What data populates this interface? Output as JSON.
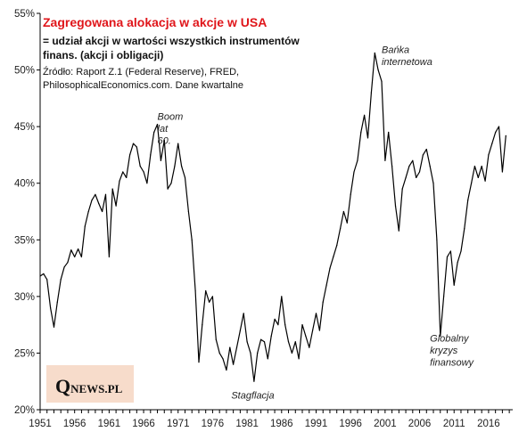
{
  "chart_data": {
    "type": "line",
    "title": "Zagregowana  alokacja  w akcje w USA",
    "subtitle_lines": [
      "= udział akcji w wartości wszystkich instrumentów",
      "finans. (akcji i obligacji)"
    ],
    "source_lines": [
      "Źródło: Raport Z.1 (Federal Reserve), FRED,",
      "PhilosophicalEconomics.com. Dane kwartalne"
    ],
    "xlabel": "",
    "ylabel": "",
    "xlim": [
      1951,
      2019.5
    ],
    "ylim": [
      20,
      55
    ],
    "x_ticks": [
      1951,
      1956,
      1961,
      1966,
      1971,
      1976,
      1981,
      1986,
      1991,
      1996,
      2001,
      2006,
      2011,
      2016
    ],
    "y_ticks": [
      20,
      25,
      30,
      35,
      40,
      45,
      50,
      55
    ],
    "y_tick_labels": [
      "20%",
      "25%",
      "30%",
      "35%",
      "40%",
      "45%",
      "50%",
      "55%"
    ],
    "grid": false,
    "line_color": "#000000",
    "annotations": [
      {
        "lines": [
          "Boom",
          "lat",
          "60."
        ],
        "x": 1968.0,
        "y": 45.6
      },
      {
        "lines": [
          "Bańka",
          "internetowa"
        ],
        "x": 2000.5,
        "y": 51.5
      },
      {
        "lines": [
          "Stagflacja"
        ],
        "x": 1978.7,
        "y": 21.0
      },
      {
        "lines": [
          "Globalny",
          "kryzys",
          "finansowy"
        ],
        "x": 2007.5,
        "y": 26.0
      }
    ],
    "series": [
      {
        "x": [
          1951.0,
          1951.5,
          1952.0,
          1952.5,
          1953.0,
          1953.5,
          1954.0,
          1954.5,
          1955.0,
          1955.5,
          1956.0,
          1956.5,
          1957.0,
          1957.5,
          1958.0,
          1958.5,
          1959.0,
          1959.5,
          1960.0,
          1960.5,
          1961.0,
          1961.5,
          1962.0,
          1962.5,
          1963.0,
          1963.5,
          1964.0,
          1964.5,
          1965.0,
          1965.5,
          1966.0,
          1966.5,
          1967.0,
          1967.5,
          1968.0,
          1968.5,
          1969.0,
          1969.5,
          1970.0,
          1970.5,
          1971.0,
          1971.5,
          1972.0,
          1972.5,
          1973.0,
          1973.5,
          1974.0,
          1974.5,
          1975.0,
          1975.5,
          1976.0,
          1976.5,
          1977.0,
          1977.5,
          1978.0,
          1978.5,
          1979.0,
          1979.5,
          1980.0,
          1980.5,
          1981.0,
          1981.5,
          1982.0,
          1982.5,
          1983.0,
          1983.5,
          1984.0,
          1984.5,
          1985.0,
          1985.5,
          1986.0,
          1986.5,
          1987.0,
          1987.5,
          1988.0,
          1988.5,
          1989.0,
          1989.5,
          1990.0,
          1990.5,
          1991.0,
          1991.5,
          1992.0,
          1992.5,
          1993.0,
          1993.5,
          1994.0,
          1994.5,
          1995.0,
          1995.5,
          1996.0,
          1996.5,
          1997.0,
          1997.5,
          1998.0,
          1998.5,
          1999.0,
          1999.5,
          2000.0,
          2000.5,
          2001.0,
          2001.5,
          2002.0,
          2002.5,
          2003.0,
          2003.5,
          2004.0,
          2004.5,
          2005.0,
          2005.5,
          2006.0,
          2006.5,
          2007.0,
          2007.5,
          2008.0,
          2008.5,
          2009.0,
          2009.5,
          2010.0,
          2010.5,
          2011.0,
          2011.5,
          2012.0,
          2012.5,
          2013.0,
          2013.5,
          2014.0,
          2014.5,
          2015.0,
          2015.5,
          2016.0,
          2016.5,
          2017.0,
          2017.5,
          2018.0,
          2018.5
        ],
        "values": [
          31.8,
          32.0,
          31.5,
          29.0,
          27.3,
          29.5,
          31.5,
          32.6,
          33.0,
          34.1,
          33.5,
          34.2,
          33.5,
          36.2,
          37.5,
          38.5,
          39.0,
          38.2,
          37.5,
          39.0,
          33.5,
          39.5,
          38.0,
          40.2,
          41.0,
          40.5,
          42.5,
          43.5,
          43.2,
          41.5,
          41.0,
          40.0,
          42.5,
          44.5,
          45.2,
          42.0,
          43.8,
          39.5,
          40.0,
          41.5,
          43.5,
          41.5,
          40.5,
          37.5,
          35.0,
          30.5,
          24.2,
          27.5,
          30.5,
          29.5,
          30.0,
          26.2,
          25.0,
          24.5,
          23.5,
          25.5,
          24.0,
          25.5,
          27.0,
          28.5,
          26.0,
          25.0,
          22.5,
          25.0,
          26.2,
          26.0,
          24.5,
          26.5,
          28.0,
          27.5,
          30.0,
          27.5,
          26.0,
          25.0,
          26.0,
          24.5,
          27.5,
          26.5,
          25.5,
          27.0,
          28.5,
          27.0,
          29.5,
          31.0,
          32.5,
          33.5,
          34.5,
          36.0,
          37.5,
          36.5,
          39.0,
          41.0,
          42.0,
          44.5,
          46.0,
          44.0,
          48.0,
          51.5,
          50.0,
          49.0,
          42.0,
          44.5,
          41.5,
          38.0,
          35.8,
          39.5,
          40.5,
          41.5,
          42.0,
          40.5,
          41.0,
          42.5,
          43.0,
          41.5,
          40.0,
          35.0,
          26.5,
          30.0,
          33.5,
          34.0,
          31.0,
          33.0,
          34.0,
          36.0,
          38.5,
          40.0,
          41.5,
          40.5,
          41.5,
          40.2,
          42.5,
          43.5,
          44.5,
          45.0,
          41.0,
          44.2
        ]
      }
    ]
  },
  "logo": {
    "q": "Q",
    "rest": "NEWS.PL",
    "bg_color": "#f7dccb"
  }
}
